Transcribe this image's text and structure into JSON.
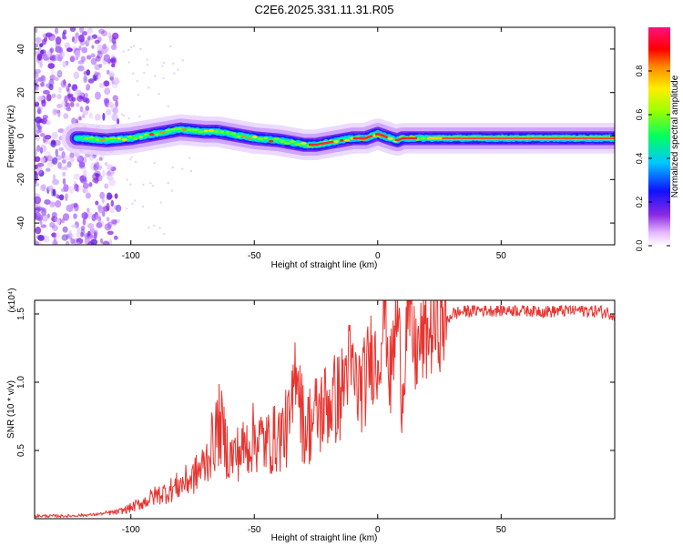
{
  "chart_data": [
    {
      "type": "heatmap",
      "title": "C2E6.2025.331.11.31.R05",
      "xlabel": "Height of straight line (km)",
      "ylabel": "Frequency (Hz)",
      "xlim": [
        -139,
        96
      ],
      "ylim": [
        -50,
        50
      ],
      "xticks": [
        -100,
        -50,
        0,
        50
      ],
      "yticks": [
        -40,
        -20,
        0,
        20,
        40
      ],
      "colorbar": {
        "label": "Normalized spectral amplitude",
        "ticks": [
          "0.0",
          "0.2",
          "0.4",
          "0.6",
          "0.8"
        ],
        "range": [
          0,
          1
        ]
      },
      "ridge": {
        "x": [
          -120,
          -110,
          -100,
          -90,
          -80,
          -70,
          -65,
          -60,
          -55,
          -50,
          -40,
          -30,
          -25,
          -20,
          -15,
          -10,
          -5,
          0,
          5,
          8,
          10,
          20,
          30,
          50,
          70,
          96
        ],
        "y": [
          -1,
          -2,
          -1,
          1,
          3,
          2,
          2,
          1,
          0,
          -1,
          -2,
          -4,
          -4,
          -3,
          -2,
          -1,
          -1,
          1,
          -1,
          -2,
          -1,
          -1,
          -1,
          -1,
          -1,
          -1
        ]
      },
      "noise_region_x": [
        -139,
        -105
      ]
    },
    {
      "type": "line",
      "xlabel": "Height of straight line (km)",
      "ylabel": "SNR (10 * v/v)",
      "y_multiplier": "(x10⁴)",
      "xlim": [
        -139,
        96
      ],
      "ylim": [
        0,
        1.6
      ],
      "xticks": [
        -100,
        -50,
        0,
        50
      ],
      "yticks": [
        0.5,
        1.0,
        1.5
      ],
      "ytick_labels": [
        "0.5",
        "1.0",
        "1.5"
      ],
      "series": [
        {
          "name": "SNR",
          "color": "#e8342f",
          "x": [
            -139,
            -125,
            -115,
            -105,
            -100,
            -95,
            -90,
            -85,
            -80,
            -75,
            -70,
            -67,
            -64,
            -60,
            -55,
            -50,
            -45,
            -40,
            -35,
            -33,
            -30,
            -25,
            -20,
            -15,
            -12,
            -8,
            -5,
            -3,
            0,
            3,
            5,
            8,
            10,
            12,
            15,
            20,
            25,
            28,
            30,
            35,
            40,
            50,
            60,
            70,
            80,
            90,
            96
          ],
          "y": [
            0.02,
            0.02,
            0.03,
            0.05,
            0.08,
            0.12,
            0.17,
            0.2,
            0.25,
            0.3,
            0.4,
            0.55,
            0.7,
            0.45,
            0.5,
            0.6,
            0.55,
            0.6,
            0.7,
            1.22,
            0.65,
            0.75,
            0.85,
            0.9,
            1.15,
            0.95,
            1.0,
            1.2,
            1.15,
            1.57,
            1.0,
            1.5,
            0.9,
            1.57,
            1.2,
            1.35,
            1.42,
            1.45,
            1.5,
            1.52,
            1.53,
            1.53,
            1.53,
            1.52,
            1.53,
            1.52,
            1.5
          ]
        }
      ]
    }
  ]
}
